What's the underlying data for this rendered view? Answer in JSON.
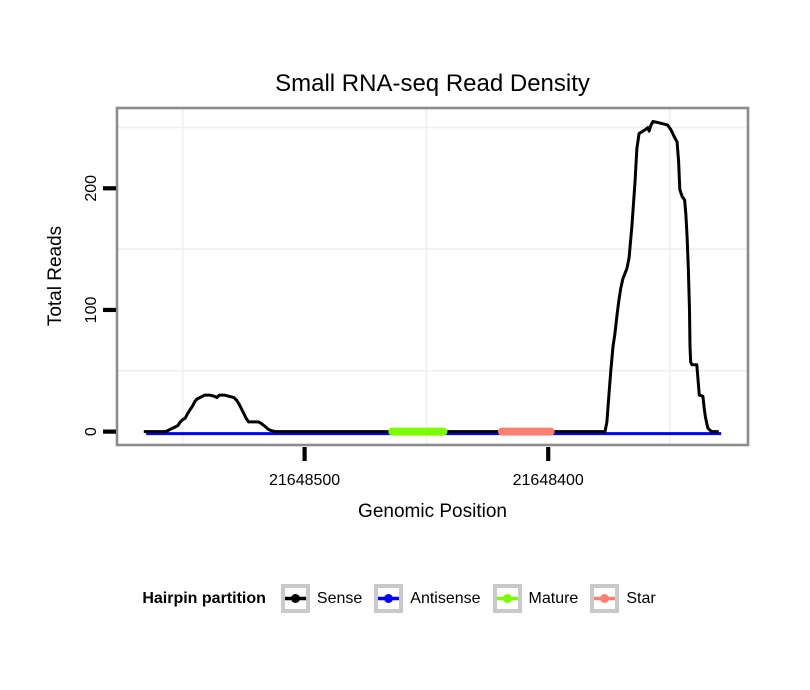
{
  "title": "Small RNA-seq Read Density",
  "chart_data": {
    "type": "area",
    "title": "Small RNA-seq Read Density",
    "xlabel": "Genomic Position",
    "ylabel": "Total Reads",
    "x_reversed": true,
    "xlim": [
      21648577,
      21648318
    ],
    "ylim": [
      -11,
      266
    ],
    "grid": "minor-only",
    "grid_color": "#f0f0f0",
    "panel_border_color": "#8c8c8c",
    "tick_color": "#000000",
    "xticks": [
      {
        "pos": 21648500,
        "label": "21648500"
      },
      {
        "pos": 21648400,
        "label": "21648400"
      }
    ],
    "yticks": [
      {
        "pos": 0,
        "label": "0"
      },
      {
        "pos": 100,
        "label": "100"
      },
      {
        "pos": 200,
        "label": "200"
      }
    ],
    "minor_gridlines_x": [
      21648550,
      21648450,
      21648350
    ],
    "minor_gridlines_y": [
      50,
      150,
      250
    ],
    "series": [
      {
        "name": "Antisense",
        "color": "#0000ff",
        "width": 3,
        "linecap": "butt",
        "points": [
          [
            21648565,
            0
          ],
          [
            21648329,
            0
          ]
        ]
      },
      {
        "name": "Sense",
        "color": "#000000",
        "width": 3,
        "linecap": "butt",
        "points": [
          [
            21648566,
            0
          ],
          [
            21648557,
            0
          ],
          [
            21648556,
            1
          ],
          [
            21648555,
            2
          ],
          [
            21648554,
            3
          ],
          [
            21648553,
            4
          ],
          [
            21648552,
            5
          ],
          [
            21648551,
            8
          ],
          [
            21648550,
            10
          ],
          [
            21648549,
            11
          ],
          [
            21648548,
            15
          ],
          [
            21648547,
            18
          ],
          [
            21648546,
            21
          ],
          [
            21648545,
            25
          ],
          [
            21648544,
            27
          ],
          [
            21648543,
            28
          ],
          [
            21648541,
            30
          ],
          [
            21648539,
            30
          ],
          [
            21648537,
            29
          ],
          [
            21648536,
            28
          ],
          [
            21648535,
            30
          ],
          [
            21648533,
            30
          ],
          [
            21648531,
            29
          ],
          [
            21648529,
            28
          ],
          [
            21648528,
            26
          ],
          [
            21648527,
            23
          ],
          [
            21648526,
            19
          ],
          [
            21648525,
            15
          ],
          [
            21648524,
            11
          ],
          [
            21648523,
            8
          ],
          [
            21648519,
            8
          ],
          [
            21648518,
            7
          ],
          [
            21648516,
            4
          ],
          [
            21648515,
            2
          ],
          [
            21648514,
            1
          ],
          [
            21648512,
            0
          ],
          [
            21648377,
            0
          ],
          [
            21648376.7,
            0
          ],
          [
            21648375.9,
            8
          ],
          [
            21648375.1,
            30
          ],
          [
            21648374.3,
            50
          ],
          [
            21648373.4,
            70
          ],
          [
            21648372.6,
            81
          ],
          [
            21648371.8,
            95
          ],
          [
            21648371,
            108
          ],
          [
            21648370.2,
            118
          ],
          [
            21648369.3,
            126
          ],
          [
            21648367.7,
            134
          ],
          [
            21648366.8,
            143
          ],
          [
            21648365.6,
            170
          ],
          [
            21648364.4,
            205
          ],
          [
            21648363.6,
            233
          ],
          [
            21648362.7,
            245
          ],
          [
            21648360.3,
            248
          ],
          [
            21648359,
            250
          ],
          [
            21648358.6,
            247
          ],
          [
            21648357.8,
            252
          ],
          [
            21648357,
            255
          ],
          [
            21648355,
            254
          ],
          [
            21648352.9,
            253
          ],
          [
            21648351,
            252
          ],
          [
            21648349.6,
            248
          ],
          [
            21648348.4,
            243
          ],
          [
            21648347.1,
            238
          ],
          [
            21648346.5,
            222
          ],
          [
            21648346,
            199
          ],
          [
            21648345,
            193
          ],
          [
            21648344.5,
            192
          ],
          [
            21648344,
            190
          ],
          [
            21648343.5,
            178
          ],
          [
            21648343,
            160
          ],
          [
            21648342.5,
            135
          ],
          [
            21648342,
            100
          ],
          [
            21648341.8,
            70
          ],
          [
            21648341.5,
            57
          ],
          [
            21648341,
            55
          ],
          [
            21648339,
            55
          ],
          [
            21648338.5,
            42
          ],
          [
            21648338,
            30
          ],
          [
            21648336.5,
            29
          ],
          [
            21648336,
            20
          ],
          [
            21648335.5,
            12
          ],
          [
            21648334.5,
            3
          ],
          [
            21648333.5,
            1
          ],
          [
            21648333,
            0
          ],
          [
            21648330,
            0
          ]
        ]
      },
      {
        "name": "Mature",
        "color": "#7cfc00",
        "width": 8,
        "linecap": "round",
        "points": [
          [
            21648464,
            0
          ],
          [
            21648443,
            0
          ]
        ]
      },
      {
        "name": "Star",
        "color": "#fa8072",
        "width": 8,
        "linecap": "round",
        "points": [
          [
            21648419,
            0
          ],
          [
            21648399,
            0
          ]
        ]
      }
    ],
    "legend": {
      "title": "Hairpin partition",
      "position": "bottom",
      "items": [
        {
          "label": "Sense",
          "color": "#000000"
        },
        {
          "label": "Antisense",
          "color": "#0000ff"
        },
        {
          "label": "Mature",
          "color": "#7cfc00"
        },
        {
          "label": "Star",
          "color": "#fa8072"
        }
      ]
    }
  }
}
